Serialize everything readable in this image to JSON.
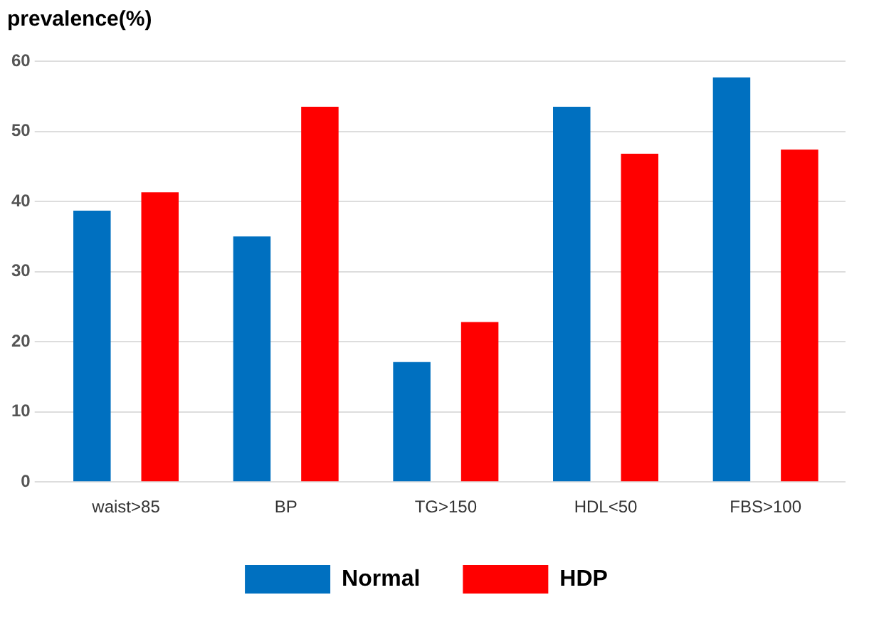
{
  "chart_data": {
    "type": "bar",
    "ylabel": "prevalence(%)",
    "categories": [
      "waist>85",
      "BP",
      "TG>150",
      "HDL<50",
      "FBS>100"
    ],
    "series": [
      {
        "name": "Normal",
        "color": "#0070c0",
        "values": [
          38.7,
          35,
          17.1,
          53.5,
          57.7
        ]
      },
      {
        "name": "HDP",
        "color": "#ff0000",
        "values": [
          41.3,
          53.5,
          22.8,
          46.8,
          47.4
        ]
      }
    ],
    "ylim": [
      0,
      60
    ],
    "yticks": [
      0,
      10,
      20,
      30,
      40,
      50,
      60
    ],
    "grid": "y",
    "legend": "bottom"
  }
}
